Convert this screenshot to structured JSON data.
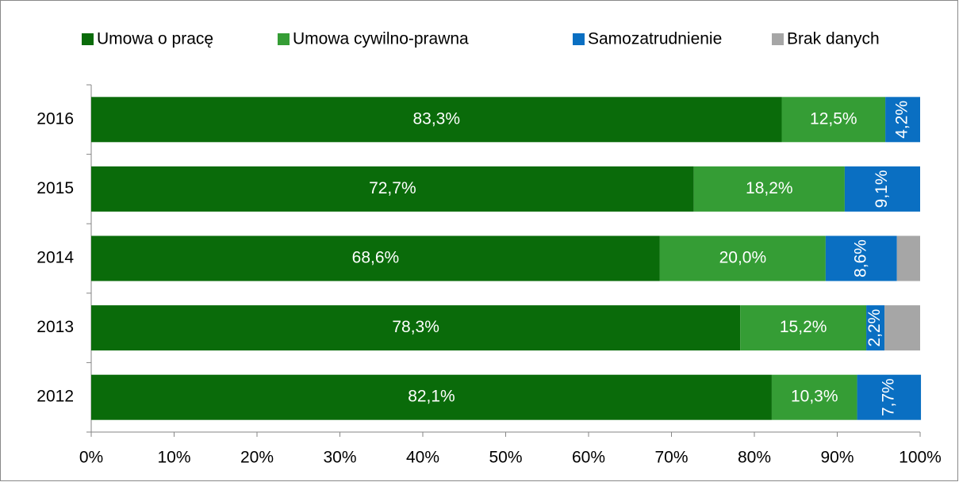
{
  "chart_data": {
    "type": "stacked-barh",
    "categories": [
      "2016",
      "2015",
      "2014",
      "2013",
      "2012"
    ],
    "series": [
      {
        "name": "Umowa o pracę",
        "color": "#0a6b0a",
        "values": [
          83.3,
          72.7,
          68.6,
          78.3,
          82.1
        ],
        "value_labels": [
          "83,3%",
          "72,7%",
          "68,6%",
          "78,3%",
          "82,1%"
        ]
      },
      {
        "name": "Umowa cywilno-prawna",
        "color": "#359d35",
        "values": [
          12.5,
          18.2,
          20.0,
          15.2,
          10.3
        ],
        "value_labels": [
          "12,5%",
          "18,2%",
          "20,0%",
          "15,2%",
          "10,3%"
        ]
      },
      {
        "name": "Samozatrudnienie",
        "color": "#0a6fc2",
        "values": [
          4.2,
          9.1,
          8.6,
          2.2,
          7.7
        ],
        "value_labels": [
          "4,2%",
          "9,1%",
          "8,6%",
          "2,2%",
          "7,7%"
        ]
      },
      {
        "name": "Brak danych",
        "color": "#a6a6a6",
        "values": [
          0,
          0,
          2.8,
          4.3,
          0
        ]
      }
    ],
    "xlim": [
      0,
      100
    ],
    "xticks": [
      {
        "value": 0,
        "label": "0%"
      },
      {
        "value": 10,
        "label": "10%"
      },
      {
        "value": 20,
        "label": "20%"
      },
      {
        "value": 30,
        "label": "30%"
      },
      {
        "value": 40,
        "label": "40%"
      },
      {
        "value": 50,
        "label": "50%"
      },
      {
        "value": 60,
        "label": "60%"
      },
      {
        "value": 70,
        "label": "70%"
      },
      {
        "value": 80,
        "label": "80%"
      },
      {
        "value": 90,
        "label": "90%"
      },
      {
        "value": 100,
        "label": "100%"
      }
    ],
    "legend": "top"
  }
}
